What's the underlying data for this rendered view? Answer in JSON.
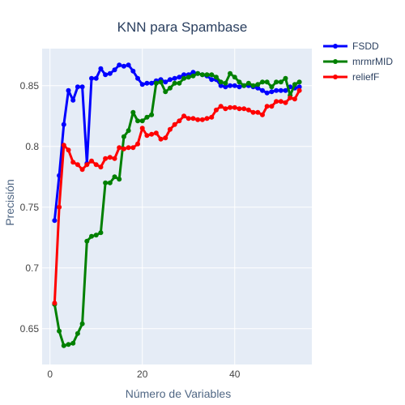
{
  "chart_data": {
    "type": "line",
    "title": "KNN para Spambase",
    "xlabel": "Número de Variables",
    "ylabel": "Precisión",
    "xlim": [
      -1.7,
      56.7
    ],
    "ylim": [
      0.6205,
      0.8805
    ],
    "x_ticks": [
      0,
      20,
      40
    ],
    "y_ticks": [
      0.65,
      0.7,
      0.75,
      0.8,
      0.85
    ],
    "x_tick_labels": [
      "0",
      "20",
      "40"
    ],
    "y_tick_labels": [
      "0.65",
      "0.7",
      "0.75",
      "0.8",
      "0.85"
    ],
    "grid": true,
    "legend_position": "top-right",
    "plot_bgcolor": "#e5ecf6",
    "series": [
      {
        "name": "FSDD",
        "color": "#0000ff",
        "x": [
          1,
          2,
          3,
          4,
          5,
          6,
          7,
          8,
          9,
          10,
          11,
          12,
          13,
          14,
          15,
          16,
          17,
          18,
          19,
          20,
          21,
          22,
          23,
          24,
          25,
          26,
          27,
          28,
          29,
          30,
          31,
          32,
          33,
          34,
          35,
          36,
          37,
          38,
          39,
          40,
          41,
          42,
          43,
          44,
          45,
          46,
          47,
          48,
          49,
          50,
          51,
          52,
          53,
          54
        ],
        "values": [
          0.739,
          0.776,
          0.818,
          0.846,
          0.838,
          0.849,
          0.849,
          0.786,
          0.856,
          0.856,
          0.864,
          0.859,
          0.86,
          0.863,
          0.867,
          0.866,
          0.867,
          0.862,
          0.856,
          0.851,
          0.852,
          0.852,
          0.854,
          0.855,
          0.853,
          0.855,
          0.856,
          0.857,
          0.859,
          0.859,
          0.861,
          0.86,
          0.859,
          0.858,
          0.855,
          0.855,
          0.85,
          0.849,
          0.85,
          0.85,
          0.849,
          0.85,
          0.85,
          0.849,
          0.848,
          0.846,
          0.844,
          0.845,
          0.846,
          0.846,
          0.846,
          0.849,
          0.848,
          0.849
        ]
      },
      {
        "name": "mrmrMID",
        "color": "#008000",
        "x": [
          1,
          2,
          3,
          4,
          5,
          6,
          7,
          8,
          9,
          10,
          11,
          12,
          13,
          14,
          15,
          16,
          17,
          18,
          19,
          20,
          21,
          22,
          23,
          24,
          25,
          26,
          27,
          28,
          29,
          30,
          31,
          32,
          33,
          34,
          35,
          36,
          37,
          38,
          39,
          40,
          41,
          42,
          43,
          44,
          45,
          46,
          47,
          48,
          49,
          50,
          51,
          52,
          53,
          54
        ],
        "values": [
          0.67,
          0.648,
          0.636,
          0.637,
          0.638,
          0.646,
          0.654,
          0.722,
          0.726,
          0.727,
          0.729,
          0.77,
          0.77,
          0.775,
          0.773,
          0.808,
          0.813,
          0.828,
          0.821,
          0.821,
          0.824,
          0.826,
          0.852,
          0.853,
          0.845,
          0.848,
          0.852,
          0.852,
          0.856,
          0.857,
          0.858,
          0.86,
          0.859,
          0.859,
          0.859,
          0.857,
          0.853,
          0.852,
          0.86,
          0.857,
          0.853,
          0.85,
          0.852,
          0.85,
          0.851,
          0.853,
          0.853,
          0.849,
          0.853,
          0.853,
          0.856,
          0.842,
          0.851,
          0.853
        ]
      },
      {
        "name": "reliefF",
        "color": "#ff0000",
        "x": [
          1,
          2,
          3,
          4,
          5,
          6,
          7,
          8,
          9,
          10,
          11,
          12,
          13,
          14,
          15,
          16,
          17,
          18,
          19,
          20,
          21,
          22,
          23,
          24,
          25,
          26,
          27,
          28,
          29,
          30,
          31,
          32,
          33,
          34,
          35,
          36,
          37,
          38,
          39,
          40,
          41,
          42,
          43,
          44,
          45,
          46,
          47,
          48,
          49,
          50,
          51,
          52,
          53,
          54
        ],
        "values": [
          0.671,
          0.75,
          0.801,
          0.797,
          0.787,
          0.785,
          0.781,
          0.785,
          0.788,
          0.785,
          0.783,
          0.79,
          0.791,
          0.79,
          0.799,
          0.798,
          0.799,
          0.799,
          0.802,
          0.815,
          0.809,
          0.81,
          0.811,
          0.806,
          0.807,
          0.814,
          0.818,
          0.821,
          0.825,
          0.823,
          0.823,
          0.822,
          0.822,
          0.823,
          0.824,
          0.83,
          0.833,
          0.831,
          0.832,
          0.832,
          0.831,
          0.831,
          0.83,
          0.828,
          0.828,
          0.826,
          0.833,
          0.833,
          0.837,
          0.837,
          0.836,
          0.84,
          0.839,
          0.846
        ]
      }
    ]
  }
}
